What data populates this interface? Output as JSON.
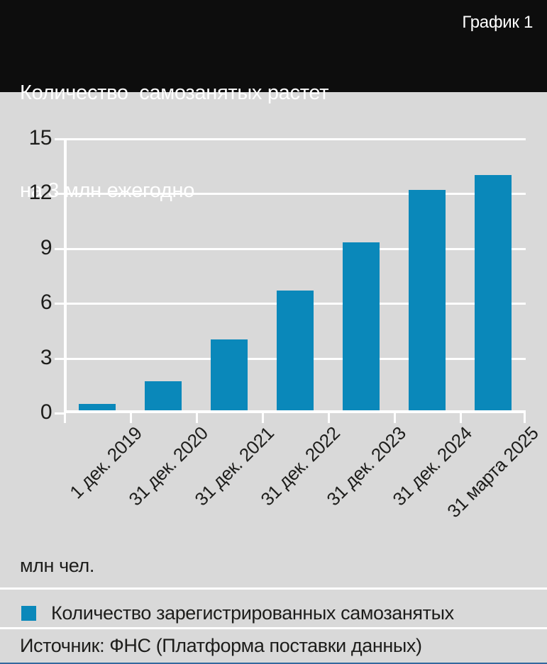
{
  "header": {
    "title_line1": "Количество  самозанятых растет",
    "title_line2": "на 3 млн ежегодно",
    "chart_label": "График 1"
  },
  "legend": {
    "label": "Количество зарегистрированных самозанятых"
  },
  "source": {
    "text": "Источник: ФНС (Платформа поставки данных)"
  },
  "colors": {
    "header_bg": "#0d0d0d",
    "page_bg": "#d9d9d9",
    "bar": "#0a88ba",
    "grid": "#ffffff",
    "text": "#1d1d1b"
  },
  "chart_data": {
    "type": "bar",
    "title": "Количество самозанятых растет на 3 млн ежегодно",
    "categories": [
      "1 дек. 2019",
      "31 дек. 2020",
      "31 дек. 2021",
      "31 дек. 2022",
      "31 дек. 2023",
      "31 дек. 2024",
      "31 марта 2025"
    ],
    "values": [
      0.34,
      1.6,
      3.9,
      6.6,
      9.3,
      12.2,
      13.0
    ],
    "series_name": "Количество зарегистрированных самозанятых",
    "xlabel": "",
    "ylabel": "млн чел.",
    "ylim": [
      0,
      15
    ],
    "yticks": [
      0,
      3,
      6,
      9,
      12,
      15
    ],
    "grid": true,
    "legend_position": "bottom",
    "source": "Источник: ФНС (Платформа поставки данных)"
  }
}
